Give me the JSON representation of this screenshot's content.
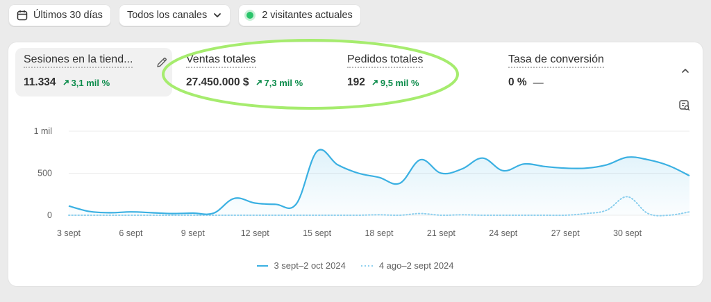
{
  "toolbar": {
    "date_range_label": "Últimos 30 días",
    "channels_label": "Todos los canales",
    "visitors_label": "2 visitantes actuales"
  },
  "metrics": [
    {
      "title": "Sesiones en la tiend...",
      "value": "11.334",
      "change": "3,1 mil %"
    },
    {
      "title": "Ventas totales",
      "value": "27.450.000 $",
      "change": "7,3 mil %"
    },
    {
      "title": "Pedidos totales",
      "value": "192",
      "change": "9,5 mil %"
    },
    {
      "title": "Tasa de conversión",
      "value": "0 %",
      "change": "—"
    }
  ],
  "colors": {
    "series_primary": "#3ab0e2",
    "series_compare": "#8fd0ee",
    "positive_change": "#0c8c4b",
    "highlight_ellipse": "#a6ec6e",
    "live_dot": "#29c46a"
  },
  "icons": [
    "calendar-icon",
    "chevron-down-icon",
    "edit-icon",
    "chevron-up-icon",
    "report-search-icon",
    "arrow-up-right-icon"
  ],
  "chart_data": {
    "type": "line",
    "ylim": [
      0,
      1000
    ],
    "yticks": [
      {
        "value": 0,
        "label": "0"
      },
      {
        "value": 500,
        "label": "500"
      },
      {
        "value": 1000,
        "label": "1 mil"
      }
    ],
    "xticks": [
      {
        "index": 0,
        "label": "3 sept"
      },
      {
        "index": 3,
        "label": "6 sept"
      },
      {
        "index": 6,
        "label": "9 sept"
      },
      {
        "index": 9,
        "label": "12 sept"
      },
      {
        "index": 12,
        "label": "15 sept"
      },
      {
        "index": 15,
        "label": "18 sept"
      },
      {
        "index": 18,
        "label": "21 sept"
      },
      {
        "index": 21,
        "label": "24 sept"
      },
      {
        "index": 24,
        "label": "27 sept"
      },
      {
        "index": 27,
        "label": "30 sept"
      }
    ],
    "grid": true,
    "legend_position": "bottom",
    "series": [
      {
        "name": "3 sept–2 oct 2024",
        "style": "solid",
        "values": [
          110,
          45,
          30,
          40,
          30,
          20,
          25,
          25,
          200,
          145,
          130,
          135,
          760,
          600,
          500,
          450,
          380,
          660,
          500,
          550,
          680,
          530,
          610,
          580,
          560,
          560,
          600,
          690,
          660,
          590,
          470
        ]
      },
      {
        "name": "4 ago–2 sept 2024",
        "style": "dotted",
        "values": [
          0,
          0,
          0,
          0,
          0,
          0,
          0,
          0,
          0,
          0,
          0,
          0,
          0,
          0,
          0,
          5,
          0,
          20,
          0,
          5,
          0,
          0,
          0,
          0,
          0,
          20,
          60,
          220,
          20,
          0,
          40
        ]
      }
    ]
  }
}
